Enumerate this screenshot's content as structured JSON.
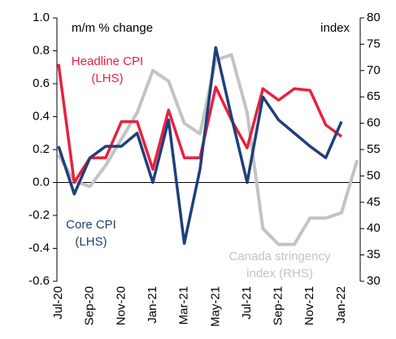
{
  "chart_data": {
    "type": "line",
    "categories": [
      "Jul-20",
      null,
      "Sep-20",
      null,
      "Nov-20",
      null,
      "Jan-21",
      null,
      "Mar-21",
      null,
      "May-21",
      null,
      "Jul-21",
      null,
      "Sep-21",
      null,
      "Nov-21",
      null,
      "Jan-22",
      null
    ],
    "series": [
      {
        "name": "Canada stringency index (RHS)",
        "color": "#c3c3c3",
        "axis": "y2",
        "values": [
          54,
          49,
          48,
          52,
          57,
          62,
          70,
          68,
          60,
          58,
          72,
          73,
          62,
          40,
          37,
          37,
          42,
          42,
          43,
          53
        ]
      },
      {
        "name": "Headline CPI (LHS)",
        "color": "#e8213f",
        "values": [
          0.72,
          0.0,
          0.15,
          0.15,
          0.37,
          0.37,
          0.08,
          0.44,
          0.15,
          0.15,
          0.58,
          0.38,
          0.21,
          0.57,
          0.5,
          0.57,
          0.56,
          0.35,
          0.28,
          null
        ]
      },
      {
        "name": "Core CPI (LHS)",
        "color": "#1f3f7a",
        "values": [
          0.22,
          -0.07,
          0.15,
          0.22,
          0.22,
          0.3,
          0.0,
          0.38,
          -0.37,
          0.08,
          0.82,
          0.4,
          0.0,
          0.52,
          0.38,
          0.3,
          0.22,
          0.15,
          0.37,
          null
        ]
      }
    ],
    "ylabel": "m/m % change",
    "y2label": "index",
    "ylim": [
      -0.6,
      1.0
    ],
    "yticks": [
      {
        "value": -0.6,
        "label": "-0.6"
      },
      {
        "value": -0.4,
        "label": "-0.4"
      },
      {
        "value": -0.2,
        "label": "-0.2"
      },
      {
        "value": 0,
        "label": "0.0"
      },
      {
        "value": 0.2,
        "label": "0.2"
      },
      {
        "value": 0.4,
        "label": "0.4"
      },
      {
        "value": 0.6,
        "label": "0.6"
      },
      {
        "value": 0.8,
        "label": "0.8"
      },
      {
        "value": 1,
        "label": "1.0"
      }
    ],
    "y2lim": [
      30,
      80
    ],
    "y2ticks": [
      30,
      35,
      40,
      45,
      50,
      55,
      60,
      65,
      70,
      75,
      80
    ],
    "annotations": [
      {
        "lines": [
          "Headline CPI",
          "(LHS)"
        ],
        "color": "#e8213f"
      },
      {
        "lines": [
          "Core CPI",
          "(LHS)"
        ],
        "color": "#1f3f7a"
      },
      {
        "lines": [
          "Canada stringency",
          "index (RHS)"
        ],
        "color": "#c3c3c3"
      }
    ]
  }
}
